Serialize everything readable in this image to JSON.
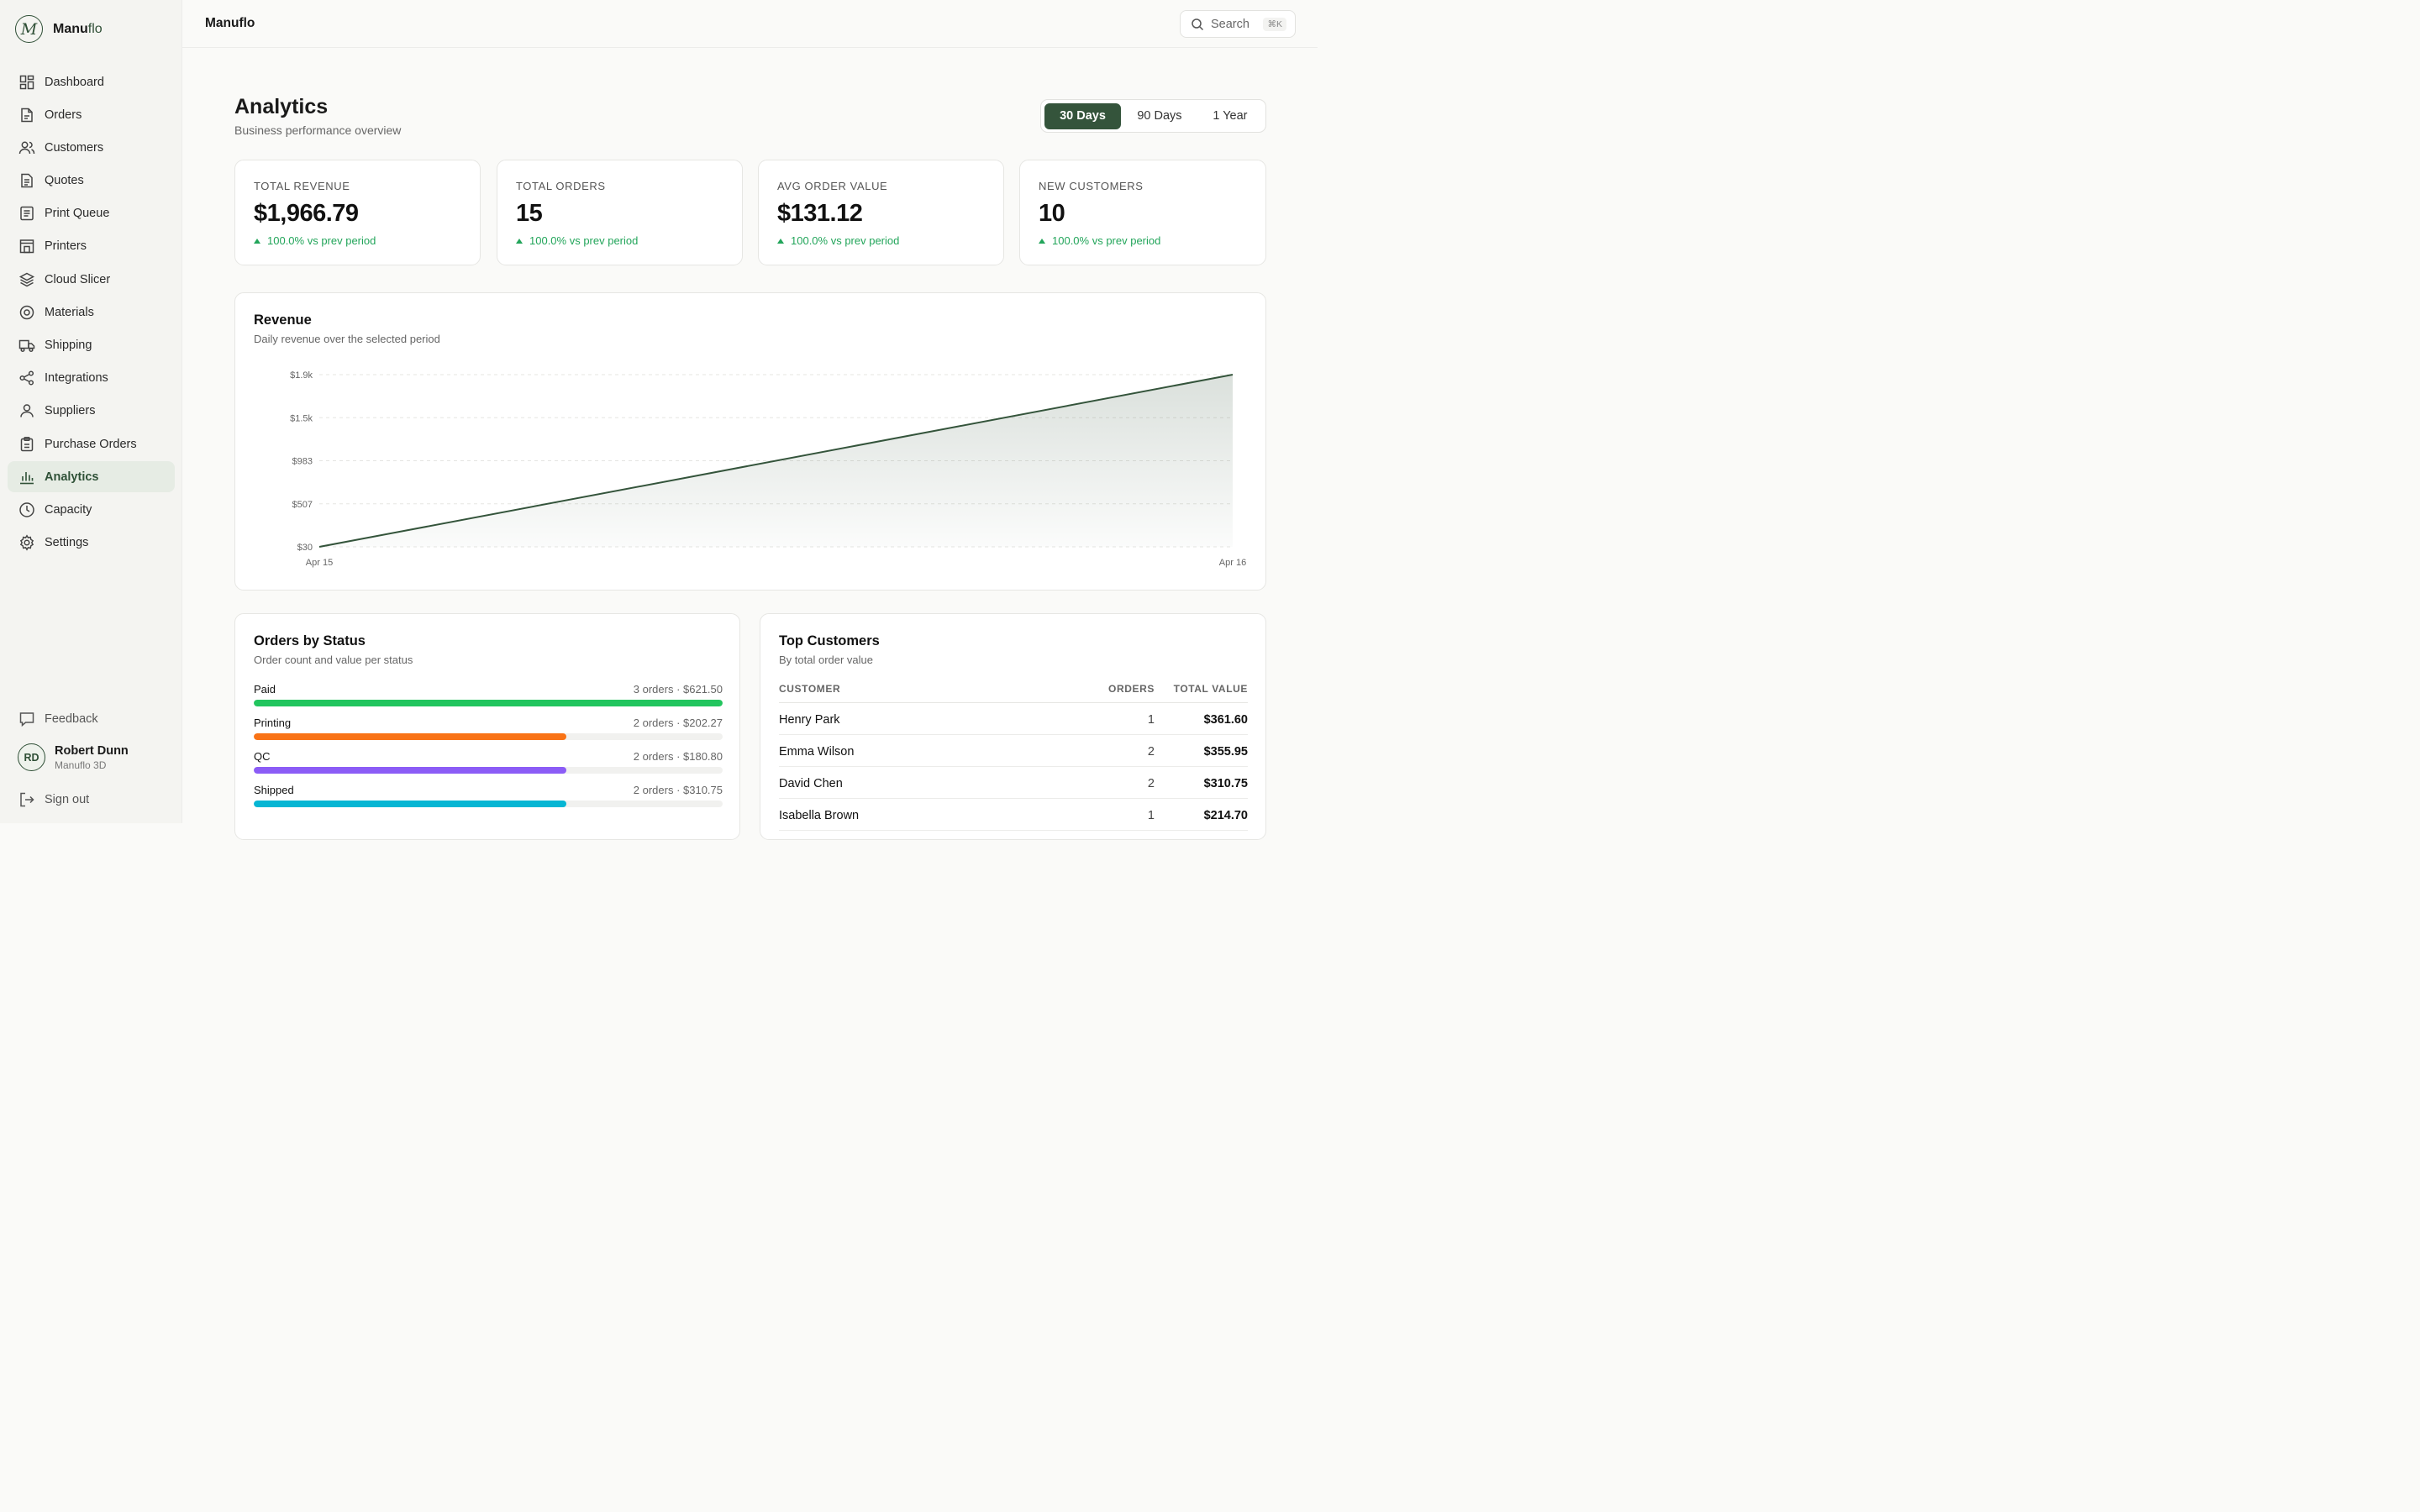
{
  "app": {
    "logo_letter": "M",
    "name_bold": "Manu",
    "name_accent": "flo",
    "topbar_title": "Manuflo"
  },
  "sidebar": {
    "items": [
      {
        "label": "Dashboard",
        "icon": "grid-icon"
      },
      {
        "label": "Orders",
        "icon": "file-icon"
      },
      {
        "label": "Customers",
        "icon": "users-icon"
      },
      {
        "label": "Quotes",
        "icon": "document-icon"
      },
      {
        "label": "Print Queue",
        "icon": "list-icon"
      },
      {
        "label": "Printers",
        "icon": "printer-icon"
      },
      {
        "label": "Cloud Slicer",
        "icon": "layers-icon"
      },
      {
        "label": "Materials",
        "icon": "spool-icon"
      },
      {
        "label": "Shipping",
        "icon": "truck-icon"
      },
      {
        "label": "Integrations",
        "icon": "share-icon"
      },
      {
        "label": "Suppliers",
        "icon": "user-icon"
      },
      {
        "label": "Purchase Orders",
        "icon": "clipboard-icon"
      },
      {
        "label": "Analytics",
        "icon": "bar-chart-icon",
        "active": true
      },
      {
        "label": "Capacity",
        "icon": "clock-icon"
      },
      {
        "label": "Settings",
        "icon": "gear-icon"
      }
    ],
    "feedback_label": "Feedback",
    "user": {
      "initials": "RD",
      "name": "Robert Dunn",
      "org": "Manuflo 3D"
    },
    "signout_label": "Sign out"
  },
  "search": {
    "label": "Search",
    "shortcut": "⌘K"
  },
  "page": {
    "title": "Analytics",
    "subtitle": "Business performance overview",
    "ranges": [
      "30 Days",
      "90 Days",
      "1 Year"
    ],
    "active_range": "30 Days"
  },
  "stats": [
    {
      "label": "TOTAL REVENUE",
      "value": "$1,966.79",
      "delta": "100.0% vs prev period"
    },
    {
      "label": "TOTAL ORDERS",
      "value": "15",
      "delta": "100.0% vs prev period"
    },
    {
      "label": "AVG ORDER VALUE",
      "value": "$131.12",
      "delta": "100.0% vs prev period"
    },
    {
      "label": "NEW CUSTOMERS",
      "value": "10",
      "delta": "100.0% vs prev period"
    }
  ],
  "revenue": {
    "title": "Revenue",
    "subtitle": "Daily revenue over the selected period"
  },
  "chart_data": {
    "type": "area",
    "x": [
      "Apr 15",
      "Apr 16"
    ],
    "values": [
      30,
      1936.79
    ],
    "yticks": [
      "$1.9k",
      "$1.5k",
      "$983",
      "$507",
      "$30"
    ],
    "ytick_values": [
      1936.79,
      1460,
      983,
      507,
      30
    ],
    "ylim": [
      30,
      1936.79
    ],
    "grid": true,
    "line_color": "#34543b"
  },
  "orders_by_status": {
    "title": "Orders by Status",
    "subtitle": "Order count and value per status",
    "max_count": 3,
    "rows": [
      {
        "name": "Paid",
        "meta": "3 orders · $621.50",
        "count": 3,
        "color": "#22c55e"
      },
      {
        "name": "Printing",
        "meta": "2 orders · $202.27",
        "count": 2,
        "color": "#f97316"
      },
      {
        "name": "QC",
        "meta": "2 orders · $180.80",
        "count": 2,
        "color": "#8b5cf6"
      },
      {
        "name": "Shipped",
        "meta": "2 orders · $310.75",
        "count": 2,
        "color": "#06b6d4"
      }
    ]
  },
  "top_customers": {
    "title": "Top Customers",
    "subtitle": "By total order value",
    "headers": {
      "customer": "CUSTOMER",
      "orders": "ORDERS",
      "total": "TOTAL VALUE"
    },
    "rows": [
      {
        "customer": "Henry Park",
        "orders": "1",
        "total": "$361.60"
      },
      {
        "customer": "Emma Wilson",
        "orders": "2",
        "total": "$355.95"
      },
      {
        "customer": "David Chen",
        "orders": "2",
        "total": "$310.75"
      },
      {
        "customer": "Isabella Brown",
        "orders": "1",
        "total": "$214.70"
      }
    ]
  }
}
